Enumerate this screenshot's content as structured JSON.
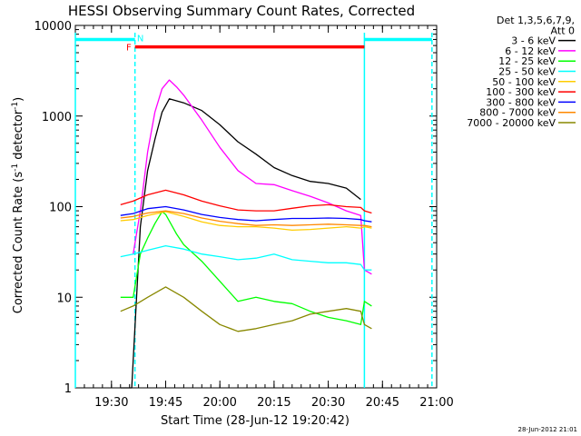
{
  "chart_data": {
    "type": "line",
    "title": "HESSI Observing Summary Count Rates, Corrected",
    "xlabel": "Start Time (28-Jun-12 19:20:42)",
    "ylabel_main": "Corrected Count Rate (s",
    "ylabel_sup": "-1",
    "ylabel_tail": " detector",
    "ylabel_end": ")",
    "yscale": "log",
    "ylim": [
      1,
      10000
    ],
    "xlim_minutes": [
      0,
      100
    ],
    "xticks": [
      {
        "t": 10,
        "label": "19:30"
      },
      {
        "t": 25,
        "label": "19:45"
      },
      {
        "t": 40,
        "label": "20:00"
      },
      {
        "t": 55,
        "label": "20:15"
      },
      {
        "t": 70,
        "label": "20:30"
      },
      {
        "t": 85,
        "label": "20:45"
      },
      {
        "t": 100,
        "label": "21:00"
      }
    ],
    "yticks": [
      {
        "v": 1,
        "label": "1"
      },
      {
        "v": 10,
        "label": "10"
      },
      {
        "v": 100,
        "label": "100"
      },
      {
        "v": 1000,
        "label": "1000"
      },
      {
        "v": 10000,
        "label": "10000"
      }
    ],
    "legend_header": [
      "Det 1,3,5,6,7,9,",
      "Att 0"
    ],
    "series": [
      {
        "name": "3 - 6 keV",
        "color": "#000000",
        "points": [
          [
            12.5,
            1
          ],
          [
            15.6,
            1
          ],
          [
            16,
            2
          ],
          [
            18,
            60
          ],
          [
            20,
            250
          ],
          [
            22,
            550
          ],
          [
            24,
            1100
          ],
          [
            26,
            1550
          ],
          [
            30,
            1400
          ],
          [
            35,
            1150
          ],
          [
            40,
            800
          ],
          [
            45,
            520
          ],
          [
            50,
            380
          ],
          [
            55,
            270
          ],
          [
            60,
            220
          ],
          [
            65,
            190
          ],
          [
            70,
            180
          ],
          [
            75,
            160
          ],
          [
            79,
            120
          ]
        ]
      },
      {
        "name": "6 - 12 keV",
        "color": "#ff00ff",
        "points": [
          [
            16,
            30
          ],
          [
            18,
            90
          ],
          [
            20,
            400
          ],
          [
            22,
            1100
          ],
          [
            24,
            2000
          ],
          [
            26,
            2500
          ],
          [
            28,
            2100
          ],
          [
            30,
            1700
          ],
          [
            35,
            900
          ],
          [
            40,
            450
          ],
          [
            45,
            250
          ],
          [
            50,
            180
          ],
          [
            55,
            175
          ],
          [
            60,
            150
          ],
          [
            65,
            130
          ],
          [
            70,
            110
          ],
          [
            75,
            90
          ],
          [
            79,
            80
          ],
          [
            80,
            20
          ],
          [
            82,
            18
          ]
        ]
      },
      {
        "name": "12 - 25 keV",
        "color": "#00ff00",
        "points": [
          [
            12.5,
            10
          ],
          [
            16,
            10
          ],
          [
            18,
            30
          ],
          [
            20,
            45
          ],
          [
            22,
            65
          ],
          [
            24,
            88
          ],
          [
            25,
            82
          ],
          [
            28,
            50
          ],
          [
            30,
            38
          ],
          [
            35,
            25
          ],
          [
            40,
            15
          ],
          [
            45,
            9
          ],
          [
            50,
            10
          ],
          [
            55,
            9
          ],
          [
            60,
            8.5
          ],
          [
            65,
            7
          ],
          [
            70,
            6
          ],
          [
            75,
            5.5
          ],
          [
            79,
            5
          ],
          [
            80,
            9
          ],
          [
            82,
            8
          ]
        ]
      },
      {
        "name": "25 - 50 keV",
        "color": "#00ffff",
        "points": [
          [
            12.5,
            28
          ],
          [
            16,
            30
          ],
          [
            20,
            33
          ],
          [
            25,
            37
          ],
          [
            30,
            34
          ],
          [
            35,
            30
          ],
          [
            40,
            28
          ],
          [
            45,
            26
          ],
          [
            50,
            27
          ],
          [
            55,
            30
          ],
          [
            60,
            26
          ],
          [
            65,
            25
          ],
          [
            70,
            24
          ],
          [
            75,
            24
          ],
          [
            79,
            23
          ],
          [
            80,
            20
          ],
          [
            82,
            20
          ]
        ]
      },
      {
        "name": "50 - 100 keV",
        "color": "#ffcc00",
        "points": [
          [
            12.5,
            70
          ],
          [
            16,
            72
          ],
          [
            20,
            80
          ],
          [
            25,
            88
          ],
          [
            30,
            78
          ],
          [
            35,
            68
          ],
          [
            40,
            62
          ],
          [
            45,
            60
          ],
          [
            50,
            60
          ],
          [
            55,
            58
          ],
          [
            60,
            55
          ],
          [
            65,
            56
          ],
          [
            70,
            58
          ],
          [
            75,
            60
          ],
          [
            79,
            58
          ],
          [
            80,
            60
          ],
          [
            82,
            58
          ]
        ]
      },
      {
        "name": "100 - 300 keV",
        "color": "#ff0000",
        "points": [
          [
            12.5,
            105
          ],
          [
            16,
            115
          ],
          [
            20,
            135
          ],
          [
            25,
            152
          ],
          [
            30,
            135
          ],
          [
            35,
            115
          ],
          [
            40,
            102
          ],
          [
            45,
            92
          ],
          [
            50,
            90
          ],
          [
            55,
            90
          ],
          [
            60,
            96
          ],
          [
            65,
            102
          ],
          [
            70,
            105
          ],
          [
            75,
            100
          ],
          [
            79,
            98
          ],
          [
            80,
            90
          ],
          [
            82,
            85
          ]
        ]
      },
      {
        "name": "300 - 800 keV",
        "color": "#0000ff",
        "points": [
          [
            12.5,
            80
          ],
          [
            16,
            84
          ],
          [
            20,
            95
          ],
          [
            25,
            100
          ],
          [
            30,
            92
          ],
          [
            35,
            82
          ],
          [
            40,
            76
          ],
          [
            45,
            72
          ],
          [
            50,
            70
          ],
          [
            55,
            72
          ],
          [
            60,
            74
          ],
          [
            65,
            74
          ],
          [
            70,
            75
          ],
          [
            75,
            74
          ],
          [
            79,
            72
          ],
          [
            80,
            70
          ],
          [
            82,
            68
          ]
        ]
      },
      {
        "name": "800 - 7000 keV",
        "color": "#ff8800",
        "points": [
          [
            12.5,
            75
          ],
          [
            16,
            78
          ],
          [
            20,
            85
          ],
          [
            25,
            90
          ],
          [
            30,
            84
          ],
          [
            35,
            75
          ],
          [
            40,
            69
          ],
          [
            45,
            65
          ],
          [
            50,
            62
          ],
          [
            55,
            63
          ],
          [
            60,
            62
          ],
          [
            65,
            63
          ],
          [
            70,
            64
          ],
          [
            75,
            63
          ],
          [
            79,
            62
          ],
          [
            80,
            62
          ],
          [
            82,
            60
          ]
        ]
      },
      {
        "name": "7000 - 20000 keV",
        "color": "#888800",
        "points": [
          [
            12.5,
            7
          ],
          [
            16,
            8
          ],
          [
            20,
            10
          ],
          [
            25,
            13
          ],
          [
            30,
            10
          ],
          [
            35,
            7
          ],
          [
            40,
            5
          ],
          [
            45,
            4.2
          ],
          [
            50,
            4.5
          ],
          [
            55,
            5
          ],
          [
            60,
            5.5
          ],
          [
            65,
            6.5
          ],
          [
            70,
            7
          ],
          [
            75,
            7.5
          ],
          [
            79,
            7
          ],
          [
            80,
            5
          ],
          [
            82,
            4.5
          ]
        ]
      }
    ],
    "flag_bars": [
      {
        "name": "cyan-left",
        "color": "#00ffff",
        "t0": 0,
        "t1": 16.5,
        "v": 7000
      },
      {
        "name": "red-flare",
        "color": "#ff0000",
        "t0": 16.5,
        "t1": 80,
        "v": 5800
      },
      {
        "name": "cyan-right",
        "color": "#00ffff",
        "t0": 80,
        "t1": 98.7,
        "v": 7000
      }
    ],
    "flag_labels": [
      {
        "text": "F",
        "color": "#ff0000",
        "t": 14.8,
        "v": 5800
      },
      {
        "text": "N",
        "color": "#00ffff",
        "t": 18,
        "v": 7300
      }
    ],
    "vertical_lines": [
      {
        "t": 0,
        "color": "#00ffff",
        "style": "solid"
      },
      {
        "t": 16.5,
        "color": "#00ffff",
        "style": "dashed"
      },
      {
        "t": 80,
        "color": "#00ffff",
        "style": "solid"
      },
      {
        "t": 98.7,
        "color": "#00ffff",
        "style": "dashed"
      }
    ],
    "timestamp": "28-Jun-2012 21:01"
  }
}
